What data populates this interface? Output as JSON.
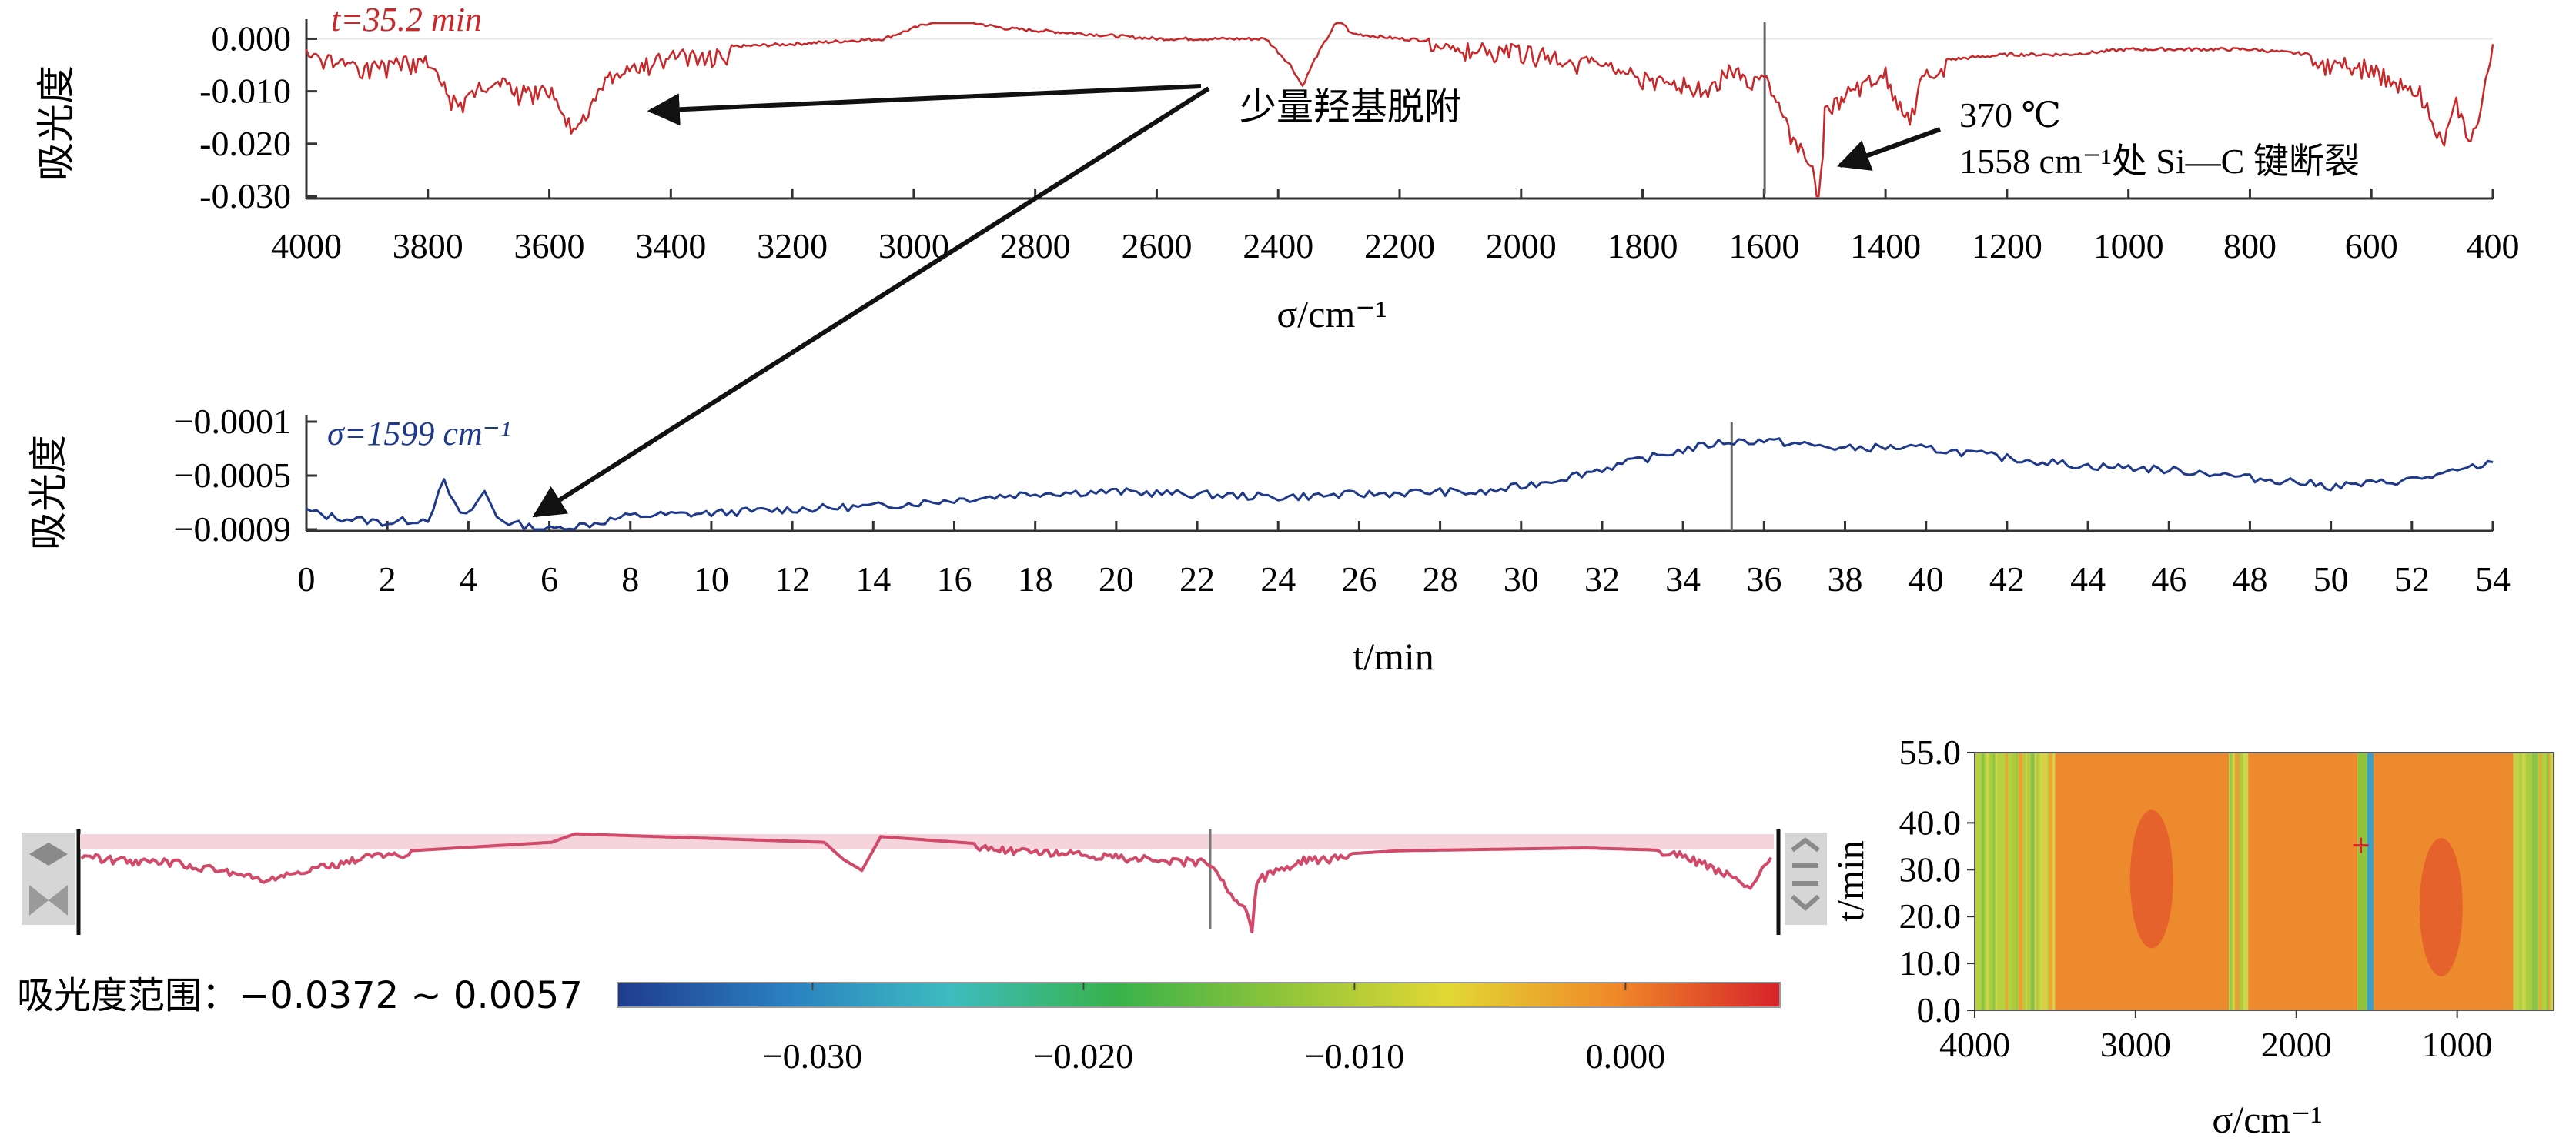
{
  "chart_data": [
    {
      "type": "line",
      "panel": "spectrum",
      "series_label": "t=35.2 min",
      "series_color": "#c8282a",
      "ylabel": "吸光度",
      "xlabel": "σ/cm⁻¹",
      "xlim": [
        4000,
        400
      ],
      "ylim": [
        -0.03,
        0.003
      ],
      "x_ticks": [
        4000,
        3800,
        3600,
        3400,
        3200,
        3000,
        2800,
        2600,
        2400,
        2200,
        2000,
        1800,
        1600,
        1400,
        1200,
        1000,
        800,
        600,
        400
      ],
      "y_ticks": [
        "0.000",
        "-0.010",
        "-0.020",
        "-0.030"
      ],
      "x": [
        4000,
        3900,
        3800,
        3750,
        3700,
        3650,
        3600,
        3560,
        3500,
        3400,
        3200,
        3050,
        2950,
        2850,
        2600,
        2420,
        2380,
        2360,
        2340,
        2300,
        2280,
        2200,
        2000,
        1900,
        1800,
        1700,
        1650,
        1620,
        1600,
        1580,
        1560,
        1540,
        1520,
        1510,
        1500,
        1480,
        1450,
        1400,
        1360,
        1340,
        1300,
        1200,
        1100,
        1000,
        900,
        800,
        700,
        600,
        520,
        480,
        460,
        440,
        420,
        400
      ],
      "y": [
        -0.002,
        -0.004,
        -0.003,
        -0.012,
        -0.006,
        -0.009,
        -0.008,
        -0.016,
        -0.006,
        -0.002,
        -0.001,
        0.0,
        0.004,
        0.002,
        0.0,
        0.0,
        -0.005,
        -0.009,
        -0.004,
        0.004,
        0.001,
        0.0,
        -0.001,
        -0.003,
        -0.006,
        -0.008,
        -0.004,
        -0.007,
        -0.005,
        -0.01,
        -0.016,
        -0.02,
        -0.024,
        -0.031,
        -0.013,
        -0.01,
        -0.008,
        -0.005,
        -0.015,
        -0.006,
        -0.004,
        -0.003,
        -0.003,
        -0.002,
        -0.002,
        -0.002,
        -0.003,
        -0.004,
        -0.009,
        -0.018,
        -0.01,
        -0.019,
        -0.011,
        -0.001
      ],
      "marker_x": 1599,
      "annotations": [
        "少量羟基脱附",
        "370 ℃",
        "1558 cm⁻¹处 Si—C 键断裂"
      ]
    },
    {
      "type": "line",
      "panel": "time-profile",
      "series_label": "σ=1599 cm⁻¹",
      "series_color": "#1f3a8a",
      "ylabel": "吸光度",
      "xlabel": "t/min",
      "xlim": [
        0,
        54
      ],
      "ylim": [
        -0.0009,
        -0.0001
      ],
      "x_ticks": [
        0,
        2,
        4,
        6,
        8,
        10,
        12,
        14,
        16,
        18,
        20,
        22,
        24,
        26,
        28,
        30,
        32,
        34,
        36,
        38,
        40,
        42,
        44,
        46,
        48,
        50,
        52,
        54
      ],
      "y_ticks": [
        "−0.0001",
        "−0.0005",
        "−0.0009"
      ],
      "x": [
        0,
        0.5,
        1,
        2,
        3,
        3.4,
        3.8,
        4.1,
        4.4,
        4.7,
        5,
        5.5,
        6,
        7,
        8,
        10,
        12,
        14,
        16,
        18,
        20,
        22,
        24,
        26,
        28,
        29,
        30,
        31,
        32,
        33,
        34,
        35,
        36,
        37,
        38,
        39,
        40,
        41,
        42,
        43,
        44,
        45,
        46,
        47,
        48,
        49,
        50,
        51,
        52,
        53,
        54
      ],
      "y": [
        -0.00076,
        -0.0008,
        -0.00082,
        -0.00085,
        -0.00082,
        -0.00055,
        -0.0008,
        -0.00075,
        -0.00062,
        -0.0008,
        -0.00085,
        -0.00088,
        -0.0009,
        -0.00086,
        -0.0008,
        -0.00078,
        -0.00075,
        -0.00073,
        -0.00068,
        -0.00063,
        -0.00062,
        -0.00064,
        -0.00066,
        -0.00064,
        -0.00062,
        -0.00063,
        -0.00058,
        -0.00052,
        -0.00045,
        -0.00038,
        -0.00031,
        -0.00025,
        -0.00024,
        -0.00027,
        -0.0003,
        -0.00029,
        -0.0003,
        -0.00033,
        -0.00037,
        -0.0004,
        -0.00043,
        -0.00044,
        -0.00046,
        -0.00048,
        -0.00052,
        -0.00054,
        -0.00058,
        -0.00056,
        -0.00053,
        -0.00048,
        -0.0004
      ],
      "marker_x": 35.2
    },
    {
      "type": "line",
      "panel": "overview",
      "series_color": "#d24a6a",
      "x": [
        4000,
        3800,
        3600,
        3400,
        3000,
        2950,
        2420,
        2380,
        2340,
        2300,
        1800,
        1600,
        1560,
        1520,
        1510,
        1500,
        1400,
        1200,
        800,
        600,
        500,
        450,
        400
      ],
      "y": [
        -0.004,
        -0.006,
        -0.012,
        -0.004,
        0.0,
        0.003,
        0.0,
        -0.006,
        -0.01,
        0.002,
        -0.004,
        -0.006,
        -0.016,
        -0.024,
        -0.031,
        -0.012,
        -0.005,
        -0.003,
        -0.002,
        -0.003,
        -0.01,
        -0.016,
        -0.002
      ],
      "marker_x": 1599
    },
    {
      "type": "heatmap",
      "panel": "map",
      "xlabel": "σ/cm⁻¹",
      "ylabel": "t/min",
      "xlim": [
        4000,
        400
      ],
      "ylim": [
        0,
        55
      ],
      "x_ticks": [
        4000,
        3000,
        2000,
        1000
      ],
      "y_ticks": [
        "0.0",
        "10.0",
        "20.0",
        "30.0",
        "40.0",
        "55.0"
      ],
      "colorbar_label": "吸光度范围：−0.0372 ~ 0.0057",
      "colorbar_range": [
        -0.0372,
        0.0057
      ],
      "colorbar_ticks": [
        "−0.030",
        "−0.020",
        "−0.010",
        "0.000"
      ],
      "colorbar_tick_values": [
        -0.03,
        -0.02,
        -0.01,
        0.0
      ],
      "colorbar_colors": [
        "#1f3b8c",
        "#2a7fc0",
        "#3dbcc0",
        "#38b24a",
        "#8fc43a",
        "#e2d834",
        "#f08a28",
        "#d6232a"
      ],
      "bands": [
        {
          "from": 4000,
          "to": 3700,
          "color": "#b7d040"
        },
        {
          "from": 3700,
          "to": 3500,
          "color": "#d9cf48"
        },
        {
          "from": 3500,
          "to": 2420,
          "color": "#ee8a2e"
        },
        {
          "from": 2420,
          "to": 2300,
          "color": "#c9d84a"
        },
        {
          "from": 2300,
          "to": 1620,
          "color": "#ee8a2e"
        },
        {
          "from": 1620,
          "to": 1560,
          "color": "#8fc43a"
        },
        {
          "from": 1560,
          "to": 1520,
          "color": "#3aa0c8"
        },
        {
          "from": 1520,
          "to": 650,
          "color": "#ee8a2e"
        },
        {
          "from": 650,
          "to": 400,
          "color": "#c2d446"
        }
      ],
      "cursor": {
        "x": 1599,
        "y": 35.2
      }
    }
  ]
}
